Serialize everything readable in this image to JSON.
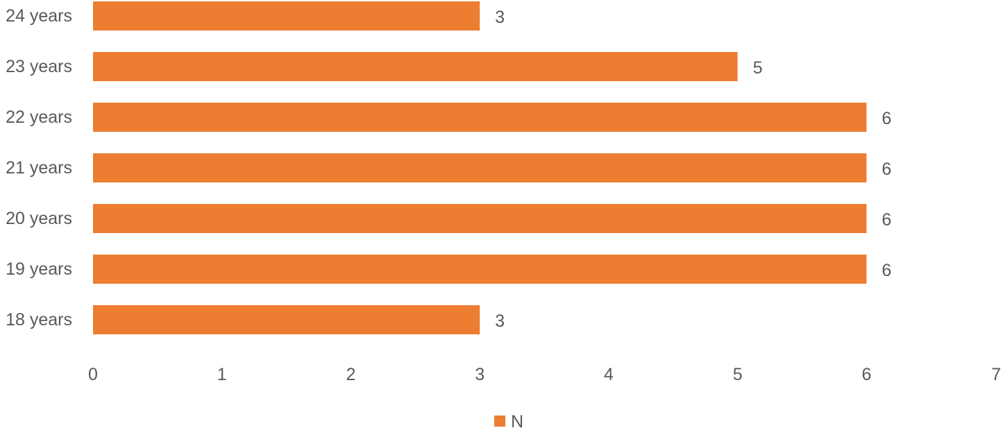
{
  "chart_data": {
    "type": "bar",
    "orientation": "horizontal",
    "categories": [
      "18 years",
      "19 years",
      "20 years",
      "21 years",
      "22 years",
      "23 years",
      "24 years"
    ],
    "series": [
      {
        "name": "N",
        "values": [
          3,
          6,
          6,
          6,
          6,
          5,
          3
        ],
        "color": "#ED7D31"
      }
    ],
    "xlim": [
      0,
      7
    ],
    "xticks": [
      "0",
      "1",
      "2",
      "3",
      "4",
      "5",
      "6",
      "7"
    ],
    "data_labels": true,
    "grid": false,
    "legend_position": "bottom",
    "colors": {
      "bar": "#ED7D31",
      "text": "#595959"
    }
  }
}
